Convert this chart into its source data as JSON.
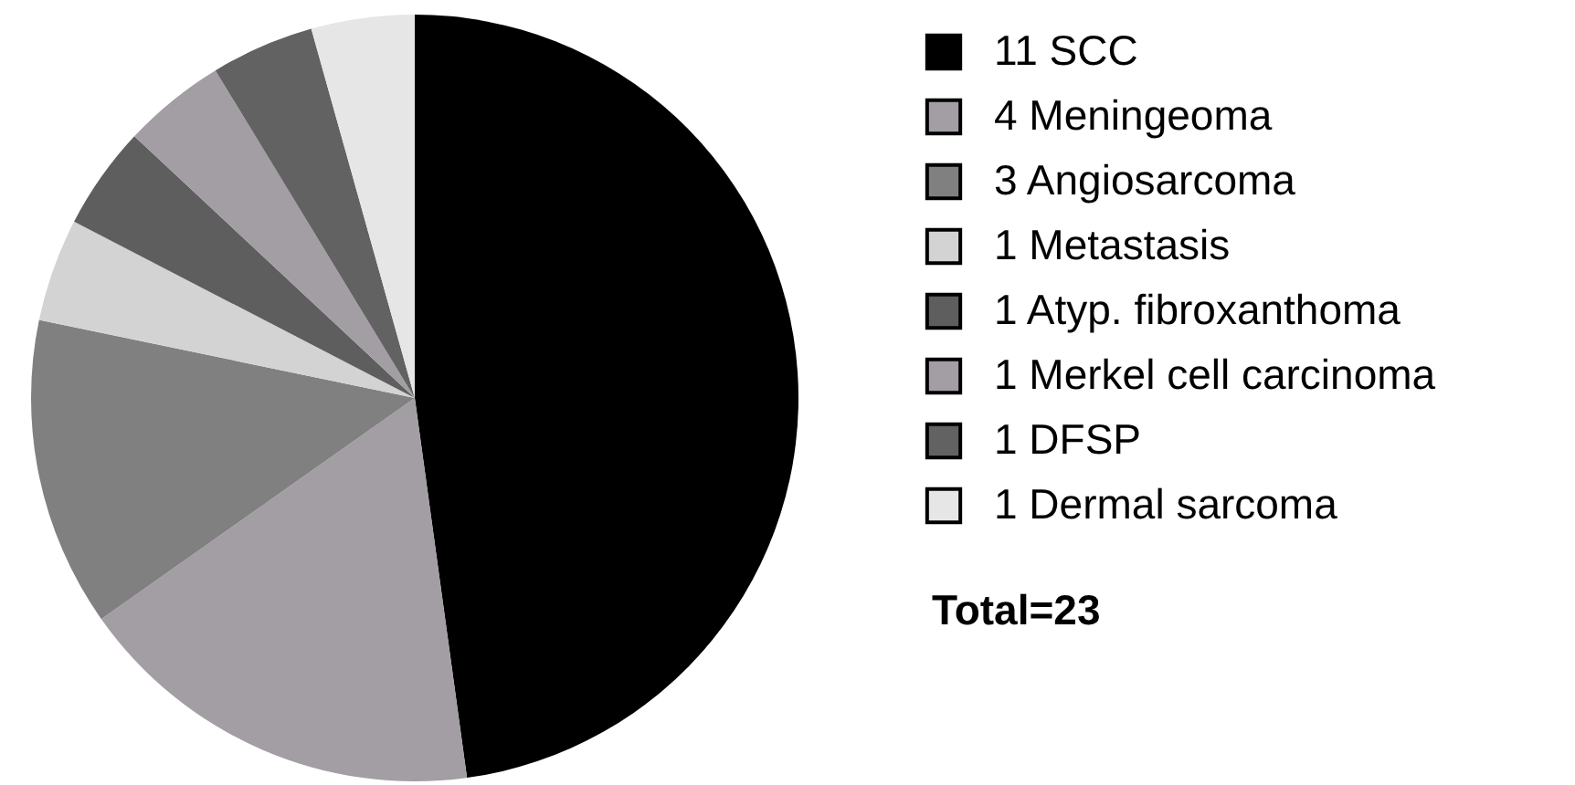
{
  "chart_data": {
    "type": "pie",
    "categories": [
      "11 SCC",
      "4 Meningeoma",
      "3 Angiosarcoma",
      "1 Metastasis",
      "1 Atyp. fibroxanthoma",
      "1 Merkel cell carcinoma",
      "1 DFSP",
      "1 Dermal sarcoma"
    ],
    "values": [
      11,
      4,
      3,
      1,
      1,
      1,
      1,
      1
    ],
    "colors": [
      "#000000",
      "#a29ea3",
      "#808080",
      "#d3d3d3",
      "#5e5e5e",
      "#a29ea3",
      "#626262",
      "#e6e6e6"
    ],
    "legend": "right",
    "annotations": [
      "Total=23"
    ]
  }
}
